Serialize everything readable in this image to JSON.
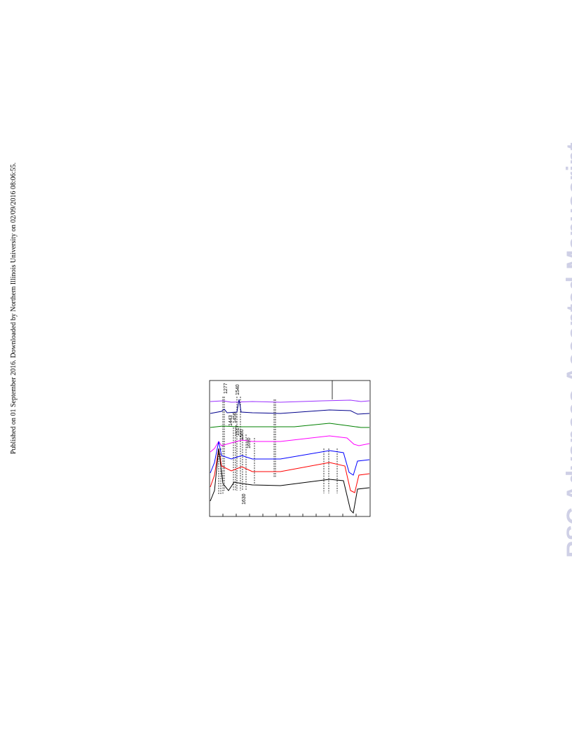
{
  "sidebar": "Published on 01 September 2016. Downloaded by Northern Illinois University on 02/09/2016 08:06:55.",
  "watermark": "RSC Advances Accepted Manuscript",
  "figure": {
    "annotations": [
      "1277",
      "1540",
      "1443",
      "1456",
      "1517",
      "1560",
      "1690",
      "1630"
    ]
  }
}
